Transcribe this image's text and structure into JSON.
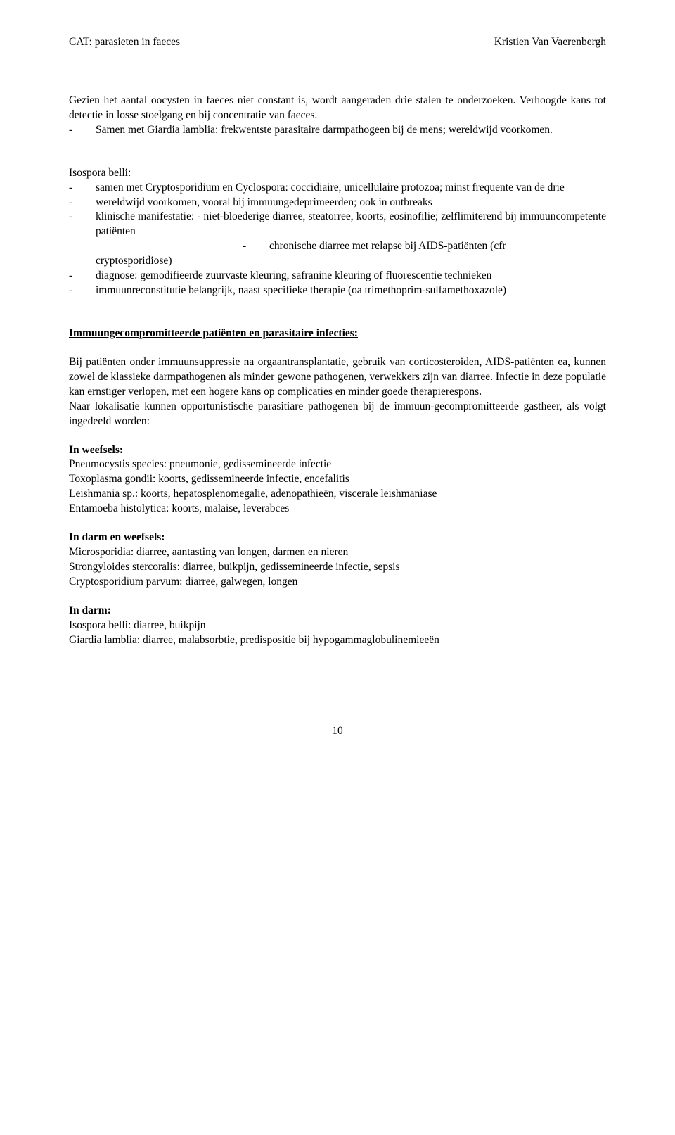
{
  "header": {
    "left": "CAT: parasieten in faeces",
    "right": "Kristien Van Vaerenbergh"
  },
  "intro": {
    "p1": "Gezien het aantal oocysten in faeces niet constant is, wordt aangeraden drie stalen te onderzoeken. Verhoogde kans tot detectie in losse stoelgang en bij concentratie van faeces.",
    "dash1": "Samen met Giardia lamblia: frekwentste parasitaire darmpathogeen bij de mens; wereldwijd voorkomen."
  },
  "isospora": {
    "title": "Isospora belli:",
    "d1": "samen met Cryptosporidium en Cyclospora: coccidiaire, unicellulaire protozoa; minst frequente van de drie",
    "d2": "wereldwijd voorkomen, vooral bij immuungedeprimeerden; ook in outbreaks",
    "d3": "klinische manifestatie: - niet-bloederige diarree, steatorree, koorts, eosinofilie; zelflimiterend bij immuuncompetente patiënten",
    "d3sub": "chronische diarree met relapse bij AIDS-patiënten (cfr cryptosporidiose)",
    "d4": "diagnose: gemodifieerde zuurvaste kleuring, safranine kleuring of fluorescentie technieken",
    "d5": "immuunreconstitutie belangrijk, naast specifieke therapie (oa trimethoprim-sulfamethoxazole)"
  },
  "immuno": {
    "heading": "Immuungecompromitteerde patiënten en parasitaire infecties:",
    "p1": "Bij patiënten onder immuunsuppressie na orgaantransplantatie, gebruik van corticosteroiden, AIDS-patiënten ea, kunnen zowel de klassieke darmpathogenen als minder gewone pathogenen, verwekkers zijn van diarree. Infectie in deze populatie kan ernstiger verlopen, met een hogere kans op complicaties en minder goede therapierespons.",
    "p2": "Naar lokalisatie kunnen opportunistische parasitiare pathogenen bij de immuun-gecompromitteerde gastheer, als volgt ingedeeld worden:"
  },
  "weefsels": {
    "heading": "In weefsels:",
    "l1": "Pneumocystis species: pneumonie, gedissemineerde infectie",
    "l2": "Toxoplasma gondii: koorts, gedissemineerde infectie, encefalitis",
    "l3": "Leishmania sp.: koorts, hepatosplenomegalie, adenopathieën, viscerale leishmaniase",
    "l4": "Entamoeba histolytica: koorts, malaise, leverabces"
  },
  "darmweefsels": {
    "heading": "In darm en weefsels:",
    "l1": "Microsporidia: diarree, aantasting van longen, darmen en nieren",
    "l2": "Strongyloides stercoralis: diarree, buikpijn, gedissemineerde infectie, sepsis",
    "l3": "Cryptosporidium parvum: diarree, galwegen, longen"
  },
  "darm": {
    "heading": "In darm:",
    "l1": "Isospora belli: diarree, buikpijn",
    "l2": "Giardia lamblia: diarree, malabsorbtie, predispositie bij hypogammaglobulinemieeën"
  },
  "pageNumber": "10"
}
